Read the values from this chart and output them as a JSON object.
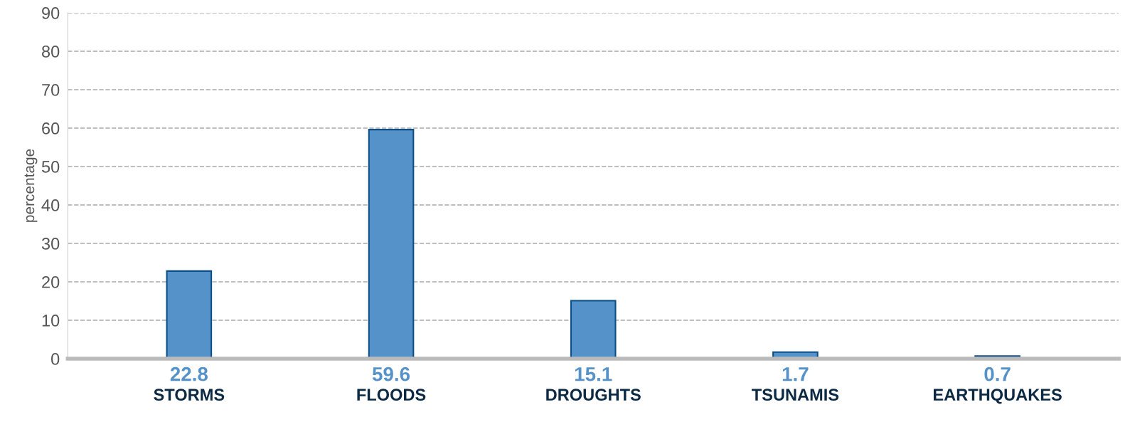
{
  "chart_data": {
    "type": "bar",
    "ylabel": "percentage",
    "categories": [
      "STORMS",
      "FLOODS",
      "DROUGHTS",
      "TSUNAMIS",
      "EARTHQUAKES"
    ],
    "values": [
      22.8,
      59.6,
      15.1,
      1.7,
      0.7
    ],
    "color": "#5592c9",
    "ylim": [
      0,
      90
    ],
    "yticks": [
      0,
      10,
      20,
      30,
      40,
      50,
      60,
      70,
      80,
      90
    ],
    "grid": "y",
    "line_style": "dashed",
    "data_labels": true
  }
}
